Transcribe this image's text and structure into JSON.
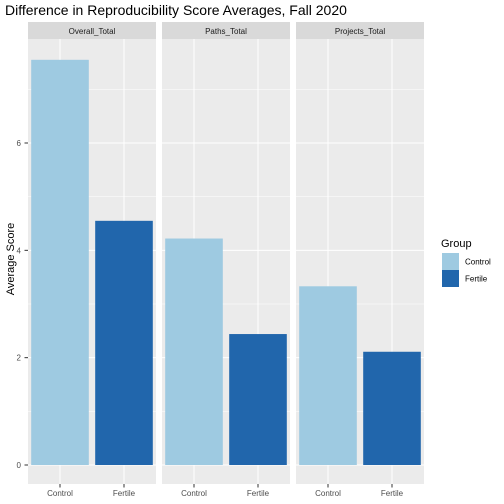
{
  "chart_data": {
    "type": "bar",
    "title": "Difference in Reproducibility Score Averages, Fall 2020",
    "ylabel": "Average Score",
    "xlabel": "",
    "ylim": [
      0,
      7.9
    ],
    "yticks": [
      0,
      2,
      4,
      6
    ],
    "categories": [
      "Control",
      "Fertile"
    ],
    "facets": [
      {
        "name": "Overall_Total",
        "values": [
          7.55,
          4.55
        ]
      },
      {
        "name": "Paths_Total",
        "values": [
          4.22,
          2.44
        ]
      },
      {
        "name": "Projects_Total",
        "values": [
          3.33,
          2.11
        ]
      }
    ],
    "legend": {
      "title": "Group",
      "placement": "right",
      "entries": [
        "Control",
        "Fertile"
      ]
    },
    "colors": {
      "Control": "#9ecae1",
      "Fertile": "#2166ac",
      "panel_bg": "#ebebeb",
      "strip_bg": "#d9d9d9",
      "grid": "#ffffff"
    },
    "grid": true
  }
}
